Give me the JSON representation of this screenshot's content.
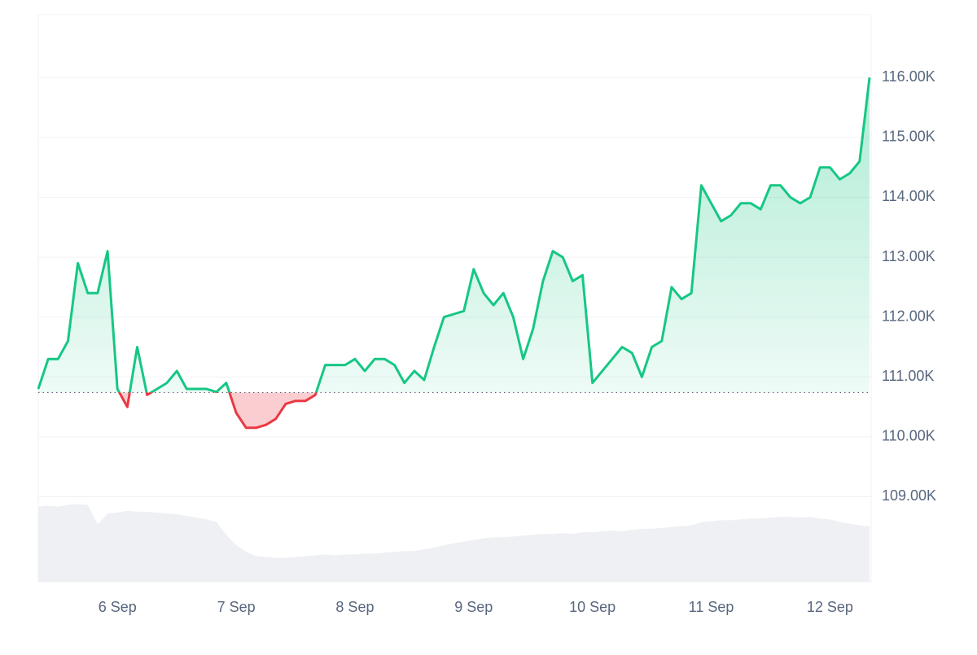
{
  "chart_data": {
    "type": "line",
    "categories": [
      null,
      null,
      null,
      null,
      null,
      null,
      null,
      null,
      "6 Sep",
      null,
      null,
      null,
      null,
      null,
      null,
      null,
      null,
      null,
      null,
      null,
      "7 Sep",
      null,
      null,
      null,
      null,
      null,
      null,
      null,
      null,
      null,
      null,
      null,
      "8 Sep",
      null,
      null,
      null,
      null,
      null,
      null,
      null,
      null,
      null,
      null,
      null,
      "9 Sep",
      null,
      null,
      null,
      null,
      null,
      null,
      null,
      null,
      null,
      null,
      null,
      "10 Sep",
      null,
      null,
      null,
      null,
      null,
      null,
      null,
      null,
      null,
      null,
      null,
      "11 Sep",
      null,
      null,
      null,
      null,
      null,
      null,
      null,
      null,
      null,
      null,
      null,
      "12 Sep",
      null,
      null,
      null,
      null
    ],
    "values": [
      110.8,
      111.3,
      111.3,
      111.6,
      112.9,
      112.4,
      112.4,
      113.1,
      110.8,
      110.5,
      111.5,
      110.7,
      110.8,
      110.9,
      111.1,
      110.8,
      110.8,
      110.8,
      110.75,
      110.9,
      110.4,
      110.15,
      110.15,
      110.2,
      110.3,
      110.55,
      110.6,
      110.6,
      110.7,
      111.2,
      111.2,
      111.2,
      111.3,
      111.1,
      111.3,
      111.3,
      111.2,
      110.9,
      111.1,
      110.95,
      111.5,
      112.0,
      112.05,
      112.1,
      112.8,
      112.4,
      112.2,
      112.4,
      112.0,
      111.3,
      111.8,
      112.6,
      113.1,
      113.0,
      112.6,
      112.7,
      110.9,
      111.1,
      111.3,
      111.5,
      111.4,
      111.0,
      111.5,
      111.6,
      112.5,
      112.3,
      112.4,
      114.2,
      113.9,
      113.6,
      113.7,
      113.9,
      113.9,
      113.8,
      114.2,
      114.2,
      114.0,
      113.9,
      114.0,
      114.5,
      114.5,
      114.3,
      114.4,
      114.6,
      116.0
    ],
    "baseline": 110.74,
    "up_color": "#16c784",
    "down_color": "#ea3943",
    "ylim": [
      107.58,
      117.05
    ],
    "yticks": [
      {
        "value": 109,
        "label": "109.00K"
      },
      {
        "value": 110,
        "label": "110.00K"
      },
      {
        "value": 111,
        "label": "111.00K"
      },
      {
        "value": 112,
        "label": "112.00K"
      },
      {
        "value": 113,
        "label": "113.00K"
      },
      {
        "value": 114,
        "label": "114.00K"
      },
      {
        "value": 115,
        "label": "115.00K"
      },
      {
        "value": 116,
        "label": "116.00K"
      }
    ],
    "grid": true,
    "volume": {
      "color": "#eef0f3",
      "y2lim": [
        0,
        100
      ],
      "values": [
        88,
        89,
        88,
        90,
        91,
        90,
        67,
        80,
        81,
        83,
        82,
        82,
        81,
        80,
        79,
        77,
        75,
        73,
        70,
        55,
        43,
        35,
        30,
        29,
        28,
        28,
        29,
        30,
        31,
        32,
        31,
        32,
        32,
        33,
        33,
        34,
        35,
        36,
        36,
        38,
        40,
        43,
        45,
        47,
        49,
        51,
        52,
        52,
        53,
        54,
        55,
        56,
        56,
        57,
        56,
        58,
        58,
        59,
        60,
        59,
        61,
        62,
        62,
        63,
        64,
        65,
        66,
        70,
        71,
        72,
        72,
        73,
        74,
        74,
        75,
        76,
        76,
        75,
        76,
        74,
        73,
        70,
        68,
        66,
        65
      ]
    }
  }
}
